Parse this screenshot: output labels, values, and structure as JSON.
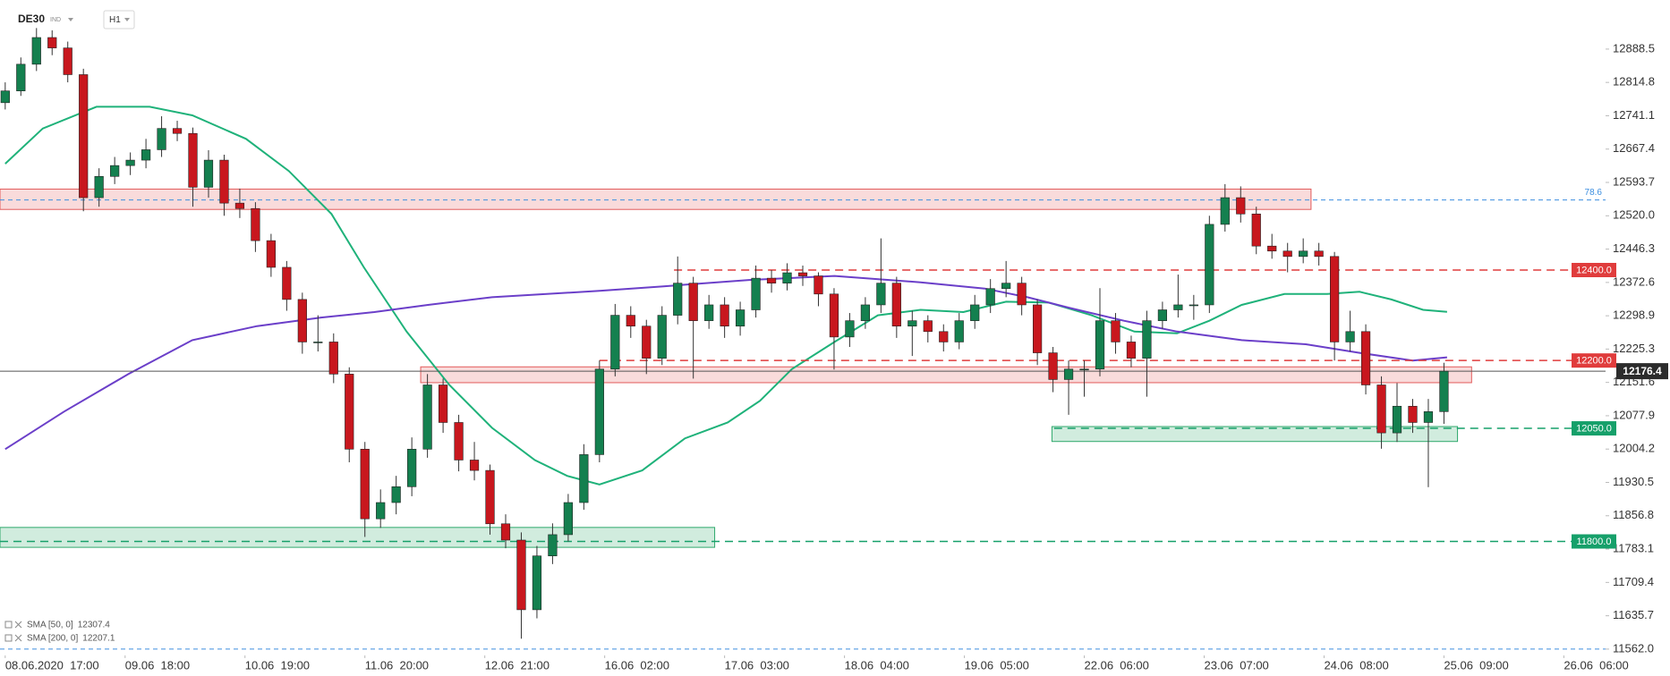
{
  "header": {
    "symbol": "DE30",
    "market": "IND",
    "timeframe": "H1"
  },
  "chart_data": {
    "type": "candlestick",
    "up_color": "#14804f",
    "down_color": "#c8171e",
    "wick_color": "#333333",
    "xlim": [
      -1,
      307
    ],
    "ylim": [
      11548,
      12997
    ],
    "xticks": [
      {
        "value": 0,
        "label": "08.06.2020  17:00"
      },
      {
        "value": 23,
        "label": "09.06  18:00"
      },
      {
        "value": 46,
        "label": "10.06  19:00"
      },
      {
        "value": 69,
        "label": "11.06  20:00"
      },
      {
        "value": 92,
        "label": "12.06  21:00"
      },
      {
        "value": 115,
        "label": "16.06  02:00"
      },
      {
        "value": 138,
        "label": "17.06  03:00"
      },
      {
        "value": 161,
        "label": "18.06  04:00"
      },
      {
        "value": 184,
        "label": "19.06  05:00"
      },
      {
        "value": 207,
        "label": "22.06  06:00"
      },
      {
        "value": 230,
        "label": "23.06  07:00"
      },
      {
        "value": 253,
        "label": "24.06  08:00"
      },
      {
        "value": 276,
        "label": "25.06  09:00"
      },
      {
        "value": 299,
        "label": "26.06  06:00"
      }
    ],
    "yticks": [
      12888.5,
      12814.8,
      12741.1,
      12667.4,
      12593.7,
      {
        "value": 12520,
        "label": "12520.0"
      },
      12446.3,
      12372.6,
      12298.9,
      12225.3,
      12151.6,
      12077.9,
      12004.2,
      11930.5,
      11856.8,
      11783.1,
      11709.4,
      11635.7,
      {
        "value": 11562,
        "label": "11562.0"
      }
    ],
    "x": [
      0,
      3,
      6,
      9,
      12,
      15,
      18,
      21,
      24,
      27,
      30,
      33,
      36,
      39,
      42,
      45,
      48,
      51,
      54,
      57,
      60,
      63,
      66,
      69,
      72,
      75,
      78,
      81,
      84,
      87,
      90,
      93,
      96,
      99,
      102,
      105,
      108,
      111,
      114,
      117,
      120,
      123,
      126,
      129,
      132,
      135,
      138,
      141,
      144,
      147,
      150,
      153,
      156,
      159,
      162,
      165,
      168,
      171,
      174,
      177,
      180,
      183,
      186,
      189,
      192,
      195,
      198,
      201,
      204,
      207,
      210,
      213,
      216,
      219,
      222,
      225,
      228,
      231,
      234,
      237,
      240,
      243,
      246,
      249,
      252,
      255,
      258,
      261,
      264,
      267,
      270,
      273,
      276
    ],
    "ohlc": [
      [
        12770,
        12815,
        12755,
        12796
      ],
      [
        12796,
        12870,
        12785,
        12855
      ],
      [
        12855,
        12935,
        12840,
        12914
      ],
      [
        12914,
        12930,
        12875,
        12891
      ],
      [
        12891,
        12905,
        12815,
        12832
      ],
      [
        12832,
        12845,
        12530,
        12560
      ],
      [
        12560,
        12625,
        12540,
        12607
      ],
      [
        12607,
        12650,
        12590,
        12631
      ],
      [
        12631,
        12660,
        12610,
        12643
      ],
      [
        12643,
        12690,
        12625,
        12666
      ],
      [
        12666,
        12740,
        12650,
        12713
      ],
      [
        12713,
        12730,
        12685,
        12702
      ],
      [
        12702,
        12715,
        12540,
        12583
      ],
      [
        12583,
        12665,
        12560,
        12643
      ],
      [
        12643,
        12655,
        12520,
        12548
      ],
      [
        12548,
        12580,
        12515,
        12536
      ],
      [
        12536,
        12550,
        12440,
        12465
      ],
      [
        12465,
        12480,
        12385,
        12406
      ],
      [
        12406,
        12420,
        12310,
        12335
      ],
      [
        12335,
        12350,
        12215,
        12241
      ],
      [
        12241,
        12300,
        12220,
        12241
      ],
      [
        12241,
        12260,
        12150,
        12170
      ],
      [
        12170,
        12185,
        11975,
        12004
      ],
      [
        12004,
        12020,
        11810,
        11850
      ],
      [
        11850,
        11915,
        11830,
        11886
      ],
      [
        11886,
        11945,
        11860,
        11921
      ],
      [
        11921,
        12030,
        11900,
        12004
      ],
      [
        12004,
        12170,
        11985,
        12146
      ],
      [
        12146,
        12160,
        12040,
        12063
      ],
      [
        12063,
        12080,
        11955,
        11980
      ],
      [
        11980,
        12020,
        11935,
        11957
      ],
      [
        11957,
        11970,
        11815,
        11839
      ],
      [
        11839,
        11860,
        11785,
        11803
      ],
      [
        11803,
        11820,
        11585,
        11649
      ],
      [
        11649,
        11790,
        11630,
        11768
      ],
      [
        11768,
        11840,
        11750,
        11815
      ],
      [
        11815,
        11905,
        11800,
        11886
      ],
      [
        11886,
        12015,
        11870,
        11992
      ],
      [
        11992,
        12200,
        11975,
        12181
      ],
      [
        12181,
        12325,
        12165,
        12300
      ],
      [
        12300,
        12320,
        12250,
        12276
      ],
      [
        12276,
        12290,
        12170,
        12205
      ],
      [
        12205,
        12320,
        12190,
        12300
      ],
      [
        12300,
        12430,
        12280,
        12371
      ],
      [
        12371,
        12385,
        12160,
        12288
      ],
      [
        12288,
        12345,
        12270,
        12323
      ],
      [
        12323,
        12340,
        12250,
        12276
      ],
      [
        12276,
        12330,
        12255,
        12312
      ],
      [
        12312,
        12410,
        12295,
        12382
      ],
      [
        12382,
        12400,
        12350,
        12371
      ],
      [
        12371,
        12415,
        12355,
        12394
      ],
      [
        12394,
        12410,
        12365,
        12387
      ],
      [
        12387,
        12395,
        12320,
        12347
      ],
      [
        12347,
        12360,
        12180,
        12252
      ],
      [
        12252,
        12305,
        12230,
        12288
      ],
      [
        12288,
        12340,
        12270,
        12323
      ],
      [
        12323,
        12470,
        12305,
        12371
      ],
      [
        12371,
        12385,
        12250,
        12276
      ],
      [
        12276,
        12310,
        12210,
        12288
      ],
      [
        12288,
        12300,
        12240,
        12264
      ],
      [
        12264,
        12280,
        12220,
        12241
      ],
      [
        12241,
        12305,
        12225,
        12288
      ],
      [
        12288,
        12345,
        12270,
        12323
      ],
      [
        12323,
        12380,
        12305,
        12359
      ],
      [
        12359,
        12420,
        12340,
        12371
      ],
      [
        12371,
        12385,
        12300,
        12323
      ],
      [
        12323,
        12335,
        12190,
        12217
      ],
      [
        12217,
        12230,
        12130,
        12158
      ],
      [
        12158,
        12200,
        12080,
        12181
      ],
      [
        12181,
        12200,
        12120,
        12181
      ],
      [
        12181,
        12360,
        12165,
        12288
      ],
      [
        12288,
        12305,
        12215,
        12241
      ],
      [
        12241,
        12255,
        12185,
        12205
      ],
      [
        12205,
        12310,
        12120,
        12288
      ],
      [
        12288,
        12330,
        12270,
        12312
      ],
      [
        12312,
        12390,
        12295,
        12323
      ],
      [
        12323,
        12345,
        12290,
        12323
      ],
      [
        12323,
        12520,
        12305,
        12501
      ],
      [
        12501,
        12590,
        12485,
        12560
      ],
      [
        12560,
        12585,
        12505,
        12524
      ],
      [
        12524,
        12540,
        12435,
        12453
      ],
      [
        12453,
        12480,
        12425,
        12442
      ],
      [
        12442,
        12460,
        12395,
        12430
      ],
      [
        12430,
        12470,
        12415,
        12442
      ],
      [
        12442,
        12460,
        12410,
        12430
      ],
      [
        12430,
        12440,
        12200,
        12241
      ],
      [
        12241,
        12310,
        12220,
        12264
      ],
      [
        12264,
        12280,
        12125,
        12146
      ],
      [
        12146,
        12165,
        12005,
        12040
      ],
      [
        12040,
        12150,
        12020,
        12099
      ],
      [
        12099,
        12115,
        12040,
        12063
      ],
      [
        12063,
        12115,
        11920,
        12087
      ],
      [
        12087,
        12195,
        12060,
        12176.4
      ]
    ],
    "series": [
      {
        "name": "SMA [50, 0]",
        "color": "#1fb27a",
        "x": [
          0,
          7.2,
          17.5,
          27.7,
          35.9,
          46.2,
          54.4,
          62.6,
          68.8,
          77,
          85.2,
          93.4,
          101.6,
          107.8,
          114,
          122.2,
          130.4,
          138.6,
          144.8,
          150.9,
          159.1,
          167.4,
          175.6,
          183.8,
          192,
          200.2,
          208.4,
          216.6,
          224.8,
          231,
          237.2,
          245.4,
          253.6,
          259.8,
          265.9,
          272,
          276.6
        ],
        "values": [
          12635,
          12713,
          12761,
          12761,
          12742,
          12690,
          12619,
          12524,
          12406,
          12264,
          12146,
          12051,
          11980,
          11945,
          11926,
          11957,
          12028,
          12063,
          12111,
          12181,
          12241,
          12300,
          12312,
          12307,
          12330,
          12328,
          12300,
          12264,
          12260,
          12288,
          12323,
          12347,
          12347,
          12352,
          12335,
          12312,
          12307.4
        ]
      },
      {
        "name": "SMA [200, 0]",
        "color": "#6b3fc9",
        "x": [
          0,
          11.3,
          23.6,
          35.9,
          48.3,
          60.6,
          70.8,
          81.1,
          93.4,
          114,
          126.3,
          142.7,
          159.1,
          175.6,
          187.9,
          196.1,
          204.3,
          214.6,
          224.8,
          237.2,
          249.5,
          259.8,
          270,
          276.6
        ],
        "values": [
          12004,
          12087,
          12170,
          12245,
          12276,
          12295,
          12307,
          12323,
          12340,
          12354,
          12364,
          12378,
          12387,
          12373,
          12359,
          12340,
          12316,
          12288,
          12264,
          12245,
          12236,
          12217,
          12200,
          12207.1
        ]
      }
    ],
    "zones": [
      {
        "x": [
          -1,
          250.5
        ],
        "range": [
          12534,
          12579
        ],
        "color": "#e25b5b"
      },
      {
        "x": [
          79.7,
          281.3
        ],
        "range": [
          12151,
          12186
        ],
        "color": "#e25b5b"
      },
      {
        "x": [
          200.8,
          278.6
        ],
        "range": [
          12021,
          12054
        ],
        "color": "#2ea86b"
      },
      {
        "x": [
          -1,
          136.1
        ],
        "range": [
          11787,
          11831
        ],
        "color": "#2ea86b"
      }
    ],
    "levels": [
      {
        "value": 12400,
        "label": "12400.0",
        "color": "#e03c3c",
        "start": 128.3
      },
      {
        "value": 12200,
        "label": "12200.0",
        "color": "#e03c3c",
        "start": 114
      },
      {
        "value": 12050,
        "label": "12050.0",
        "color": "#16a06a",
        "start": 201.2
      },
      {
        "value": 11800,
        "label": "11800.0",
        "color": "#16a06a",
        "start": -1
      }
    ],
    "fib_levels": [
      {
        "name": "78.6",
        "value": 12555,
        "color": "#3d8fe0"
      },
      {
        "value": 11562,
        "color": "#3d8fe0"
      }
    ],
    "current_price": 12176.4,
    "current_price_color": "#2c2c2c"
  }
}
